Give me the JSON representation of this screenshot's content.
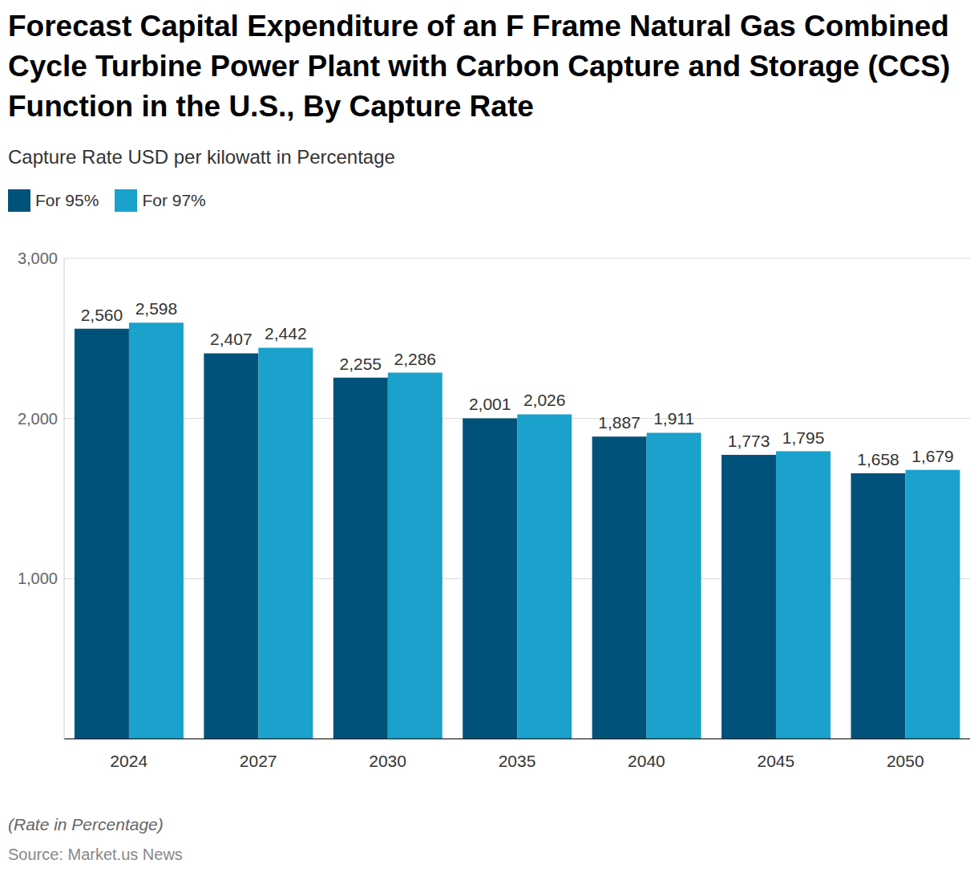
{
  "chart_data": {
    "type": "bar",
    "title": "Forecast Capital Expenditure of an F Frame Natural Gas Combined Cycle Turbine Power Plant with Carbon Capture and Storage (CCS) Function in the U.S., By Capture Rate",
    "subtitle": "Capture Rate USD per kilowatt in Percentage",
    "categories": [
      "2024",
      "2027",
      "2030",
      "2035",
      "2040",
      "2045",
      "2050"
    ],
    "series": [
      {
        "name": "For 95%",
        "color": "#00527a",
        "values": [
          2560,
          2407,
          2255,
          2001,
          1887,
          1773,
          1658
        ],
        "value_labels": [
          "2,560",
          "2,407",
          "2,255",
          "2,001",
          "1,887",
          "1,773",
          "1,658"
        ]
      },
      {
        "name": "For 97%",
        "color": "#1aa1cc",
        "values": [
          2598,
          2442,
          2286,
          2026,
          1911,
          1795,
          1679
        ],
        "value_labels": [
          "2,598",
          "2,442",
          "2,286",
          "2,026",
          "1,911",
          "1,795",
          "1,679"
        ]
      }
    ],
    "ylim": [
      0,
      3000
    ],
    "yticks": [
      {
        "value": 1000,
        "label": "1,000"
      },
      {
        "value": 2000,
        "label": "2,000"
      },
      {
        "value": 3000,
        "label": "3,000"
      }
    ],
    "grid": true,
    "legend": "top-left",
    "data_labels": true,
    "annotations": [
      "(Rate in Percentage)",
      "Source: Market.us News"
    ]
  }
}
